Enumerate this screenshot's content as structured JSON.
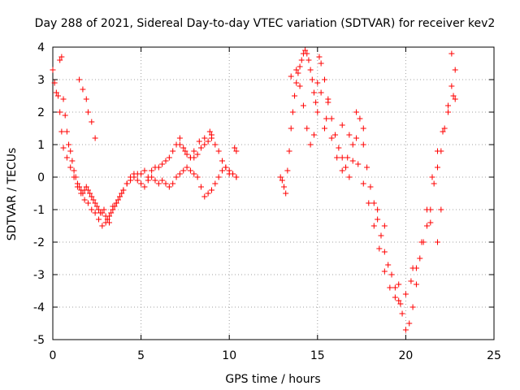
{
  "chart_data": {
    "type": "scatter",
    "title": "Day 288 of 2021, Sidereal Day-to-day VTEC variation (SDTVAR) for receiver kev2",
    "xlabel": "GPS time / hours",
    "ylabel": "SDTVAR / TECUs",
    "xlim": [
      0,
      25
    ],
    "ylim": [
      -5,
      4
    ],
    "xticks": [
      0,
      5,
      10,
      15,
      20,
      25
    ],
    "yticks": [
      -5,
      -4,
      -3,
      -2,
      -1,
      0,
      1,
      2,
      3,
      4
    ],
    "grid": true,
    "marker": "+",
    "color": "#ff0000",
    "series": [
      {
        "x": [
          0.0,
          0.1,
          0.2,
          0.3,
          0.4,
          0.5,
          0.6,
          0.7,
          0.8,
          0.9,
          1.0,
          1.1,
          1.2,
          1.3,
          1.4,
          1.5,
          1.6,
          1.7,
          1.8,
          1.9,
          2.0,
          2.1,
          2.2,
          2.3,
          2.4,
          2.5,
          2.6,
          2.7,
          2.8,
          2.9,
          3.0,
          3.1,
          3.2,
          3.3,
          3.4,
          3.5,
          3.6,
          3.7,
          3.8,
          3.9,
          4.0,
          4.2,
          4.4,
          4.6,
          4.8,
          5.0,
          5.2,
          5.4,
          5.6,
          5.8,
          6.0,
          6.2,
          6.4,
          6.6,
          6.8,
          7.0,
          7.2,
          7.4,
          7.6,
          7.8,
          8.0,
          8.2,
          8.4,
          8.6,
          8.8,
          9.0,
          9.2,
          9.4,
          9.6,
          9.8,
          10.0,
          10.2,
          10.4
        ],
        "y": [
          3.3,
          2.9,
          2.6,
          2.5,
          3.6,
          3.7,
          2.4,
          1.9,
          1.4,
          1.0,
          0.8,
          0.5,
          0.2,
          0.0,
          -0.2,
          -0.3,
          -0.4,
          -0.5,
          -0.4,
          -0.3,
          -0.4,
          -0.5,
          -0.6,
          -0.7,
          -0.8,
          -0.9,
          -1.0,
          -1.1,
          -1.1,
          -1.0,
          -1.2,
          -1.3,
          -1.4,
          -1.1,
          -1.0,
          -0.9,
          -0.8,
          -0.7,
          -0.6,
          -0.5,
          -0.4,
          -0.2,
          0.0,
          0.1,
          0.1,
          0.1,
          0.2,
          0.0,
          0.2,
          0.3,
          0.3,
          0.4,
          0.5,
          0.6,
          0.8,
          1.0,
          1.0,
          0.9,
          0.7,
          0.6,
          0.6,
          0.7,
          0.9,
          1.0,
          1.1,
          1.2,
          1.0,
          0.8,
          0.5,
          0.3,
          0.2,
          0.1,
          0.0
        ]
      },
      {
        "x": [
          0.4,
          0.5,
          0.6,
          0.8,
          1.0,
          1.2,
          1.4,
          1.6,
          1.8,
          2.0,
          2.2,
          2.4,
          2.6,
          2.8,
          3.0,
          3.2,
          3.4,
          3.6,
          3.8,
          4.0,
          4.2,
          4.4,
          4.6,
          4.8,
          5.0,
          5.2,
          5.4,
          5.6,
          5.8,
          6.0,
          6.2,
          6.4,
          6.6,
          6.8,
          7.0,
          7.2,
          7.4,
          7.6,
          7.8,
          8.0,
          8.2,
          8.4,
          8.6,
          8.8,
          9.0,
          9.2,
          9.4,
          9.6,
          9.8,
          10.0,
          10.2,
          10.4
        ],
        "y": [
          2.0,
          1.4,
          0.9,
          0.6,
          0.3,
          0.0,
          -0.3,
          -0.5,
          -0.7,
          -0.8,
          -1.0,
          -1.1,
          -1.3,
          -1.5,
          -1.4,
          -1.2,
          -0.9,
          -0.8,
          -0.6,
          -0.4,
          -0.2,
          -0.1,
          0.0,
          -0.1,
          -0.2,
          -0.3,
          -0.1,
          0.0,
          -0.1,
          -0.2,
          -0.1,
          -0.2,
          -0.3,
          -0.2,
          0.0,
          0.1,
          0.2,
          0.3,
          0.2,
          0.1,
          0.0,
          -0.3,
          -0.6,
          -0.5,
          -0.4,
          -0.2,
          0.0,
          0.2,
          0.3,
          0.1,
          0.1,
          0.0
        ]
      },
      {
        "x": [
          1.5,
          1.7,
          1.9,
          2.0,
          2.2,
          2.4,
          7.2,
          7.5,
          7.8,
          8.0,
          8.3,
          8.6,
          8.9,
          9.0,
          10.3,
          10.4
        ],
        "y": [
          3.0,
          2.7,
          2.4,
          2.0,
          1.7,
          1.2,
          1.2,
          0.8,
          0.6,
          0.8,
          1.1,
          1.2,
          1.4,
          1.3,
          0.9,
          0.8
        ]
      },
      {
        "x": [
          12.9,
          13.0,
          13.1,
          13.2,
          13.3,
          13.4,
          13.5,
          13.6,
          13.7,
          13.8,
          13.9,
          14.0,
          14.1,
          14.2,
          14.3,
          14.4,
          14.5,
          14.6,
          14.7,
          14.8,
          14.9,
          15.0,
          15.1,
          15.2,
          15.4,
          15.6,
          15.8,
          16.0,
          16.2,
          16.4,
          16.6,
          16.8,
          17.0,
          17.2,
          17.4,
          17.6,
          17.8,
          18.0,
          18.2,
          18.4,
          18.6,
          18.8,
          19.0,
          19.2,
          19.4,
          19.6,
          19.8,
          20.0,
          20.2,
          20.4,
          20.6,
          20.8,
          21.0,
          21.2,
          21.4,
          21.6,
          21.8,
          22.0,
          22.2,
          22.4,
          22.6,
          22.8
        ],
        "y": [
          0.0,
          -0.1,
          -0.3,
          -0.5,
          0.2,
          0.8,
          1.5,
          2.0,
          2.5,
          2.9,
          3.2,
          3.4,
          3.6,
          3.8,
          3.9,
          3.8,
          3.6,
          3.3,
          3.0,
          2.6,
          2.3,
          2.9,
          3.7,
          3.5,
          3.0,
          2.3,
          1.8,
          1.3,
          0.9,
          0.6,
          0.3,
          0.0,
          0.5,
          1.2,
          1.8,
          1.0,
          0.3,
          -0.3,
          -0.8,
          -1.3,
          -1.8,
          -2.3,
          -2.7,
          -3.0,
          -3.4,
          -3.8,
          -4.2,
          -4.7,
          -4.5,
          -4.0,
          -3.3,
          -2.5,
          -2.0,
          -1.5,
          -1.0,
          -0.2,
          0.3,
          0.8,
          1.5,
          2.2,
          2.8,
          3.3
        ]
      },
      {
        "x": [
          13.5,
          13.8,
          14.0,
          14.2,
          14.4,
          14.6,
          14.8,
          15.0,
          15.2,
          15.5,
          15.8,
          16.1,
          16.4,
          16.7,
          17.0,
          17.3,
          17.6,
          17.9,
          18.2,
          18.5,
          18.8,
          19.1,
          19.4,
          19.7,
          20.0,
          20.3,
          20.6,
          20.9,
          21.2,
          21.5,
          21.8,
          22.1,
          22.4,
          22.7
        ],
        "y": [
          3.1,
          3.3,
          2.8,
          2.2,
          1.5,
          1.0,
          1.3,
          2.0,
          2.6,
          1.8,
          1.2,
          0.6,
          0.2,
          0.6,
          1.0,
          0.4,
          -0.2,
          -0.8,
          -1.5,
          -2.2,
          -2.9,
          -3.4,
          -3.7,
          -3.9,
          -3.6,
          -3.2,
          -2.8,
          -2.0,
          -1.0,
          0.0,
          0.8,
          1.4,
          2.0,
          2.5
        ]
      },
      {
        "x": [
          15.4,
          15.6,
          16.4,
          16.8,
          17.2,
          17.6,
          18.4,
          18.8,
          19.6,
          20.4,
          21.4,
          21.8,
          22.0,
          22.6,
          22.8
        ],
        "y": [
          1.5,
          2.4,
          1.6,
          1.3,
          2.0,
          1.5,
          -1.0,
          -1.5,
          -3.3,
          -2.8,
          -1.4,
          -2.0,
          -1.0,
          3.8,
          2.4
        ]
      }
    ]
  }
}
